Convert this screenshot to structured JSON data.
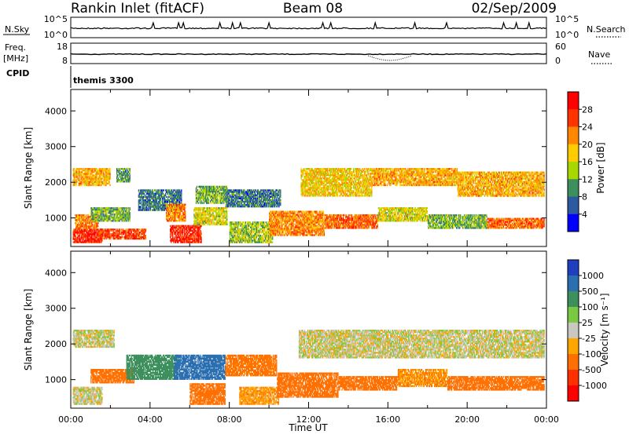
{
  "header": {
    "title": "Rankin Inlet (fitACF)",
    "beam": "Beam 08",
    "date": "02/Sep/2009"
  },
  "panels": {
    "nsky": {
      "label": "N.Sky",
      "ticks_left": [
        "10^5",
        "10^0"
      ],
      "ticks_right": [
        "10^5",
        "10^0"
      ],
      "right_label": "N.Search",
      "right_legend_line": "dotted"
    },
    "freq": {
      "label_top": "Freq.",
      "label_units": "[MHz]",
      "ticks_left": [
        "18",
        "8"
      ],
      "ticks_right": [
        "60",
        "0"
      ],
      "right_label": "Nave",
      "right_legend_line": "dotted"
    },
    "cpid": {
      "label": "CPID",
      "value": "themis 3300"
    }
  },
  "chart_data": [
    {
      "type": "heatmap",
      "name": "power",
      "ylabel": "Slant Range [km]",
      "ylim": [
        200,
        4600
      ],
      "yticks": [
        "1000",
        "2000",
        "3000",
        "4000"
      ],
      "colorbar_label": "Power [dB]",
      "colorbar_ticks": [
        "28",
        "24",
        "20",
        "16",
        "12",
        "8",
        "4"
      ],
      "colorbar_colors": [
        "#ff0000",
        "#ff3300",
        "#ff8800",
        "#ffcc00",
        "#a8d800",
        "#3e8f5e",
        "#2c5aa0",
        "#0000ff"
      ],
      "regions": [
        {
          "t0": 0.1,
          "t1": 1.6,
          "r0": 300,
          "r1": 700,
          "level": 28
        },
        {
          "t0": 0.2,
          "t1": 1.4,
          "r0": 700,
          "r1": 1100,
          "level": 22
        },
        {
          "t0": 0.1,
          "t1": 2.0,
          "r0": 1900,
          "r1": 2400,
          "level": 20
        },
        {
          "t0": 1.4,
          "t1": 3.8,
          "r0": 400,
          "r1": 700,
          "level": 26
        },
        {
          "t0": 1.0,
          "t1": 3.0,
          "r0": 900,
          "r1": 1300,
          "level": 12
        },
        {
          "t0": 2.3,
          "t1": 3.0,
          "r0": 2000,
          "r1": 2400,
          "level": 10
        },
        {
          "t0": 3.4,
          "t1": 5.6,
          "r0": 1200,
          "r1": 1800,
          "level": 8
        },
        {
          "t0": 4.8,
          "t1": 5.8,
          "r0": 900,
          "r1": 1400,
          "level": 22
        },
        {
          "t0": 5.0,
          "t1": 6.6,
          "r0": 300,
          "r1": 800,
          "level": 28
        },
        {
          "t0": 6.2,
          "t1": 7.9,
          "r0": 800,
          "r1": 1300,
          "level": 16
        },
        {
          "t0": 6.3,
          "t1": 7.9,
          "r0": 1400,
          "r1": 1900,
          "level": 12
        },
        {
          "t0": 7.8,
          "t1": 10.6,
          "r0": 1300,
          "r1": 1800,
          "level": 8
        },
        {
          "t0": 8.0,
          "t1": 10.2,
          "r0": 300,
          "r1": 900,
          "level": 14
        },
        {
          "t0": 10.0,
          "t1": 12.8,
          "r0": 500,
          "r1": 1200,
          "level": 22
        },
        {
          "t0": 12.8,
          "t1": 15.5,
          "r0": 700,
          "r1": 1100,
          "level": 24
        },
        {
          "t0": 15.5,
          "t1": 18.0,
          "r0": 900,
          "r1": 1300,
          "level": 16
        },
        {
          "t0": 18.0,
          "t1": 21.0,
          "r0": 700,
          "r1": 1100,
          "level": 12
        },
        {
          "t0": 21.0,
          "t1": 23.9,
          "r0": 700,
          "r1": 1000,
          "level": 24
        },
        {
          "t0": 11.6,
          "t1": 15.2,
          "r0": 1600,
          "r1": 2400,
          "level": 18
        },
        {
          "t0": 15.2,
          "t1": 19.5,
          "r0": 1900,
          "r1": 2400,
          "level": 20
        },
        {
          "t0": 19.5,
          "t1": 23.9,
          "r0": 1600,
          "r1": 2300,
          "level": 20
        }
      ]
    },
    {
      "type": "heatmap",
      "name": "velocity",
      "ylabel": "Slant Range [km]",
      "ylim": [
        200,
        4600
      ],
      "yticks": [
        "1000",
        "2000",
        "3000",
        "4000"
      ],
      "xlabel": "Time UT",
      "xticks": [
        "00:00",
        "04:00",
        "08:00",
        "12:00",
        "16:00",
        "20:00",
        "00:00"
      ],
      "xlim_hours": [
        0,
        24
      ],
      "colorbar_label": "Velocity [m s⁻¹]",
      "colorbar_ticks": [
        "1000",
        "500",
        "100",
        "25",
        "-25",
        "-100",
        "-500",
        "-1000"
      ],
      "colorbar_colors": [
        "#1f3fbf",
        "#2b6fb0",
        "#3e8f5e",
        "#7ac943",
        "#c8c8c0",
        "#ffa500",
        "#ff7000",
        "#ff3000",
        "#ff0000"
      ],
      "regions": [
        {
          "t0": 0.1,
          "t1": 2.2,
          "r0": 1900,
          "r1": 2400,
          "level": 0
        },
        {
          "t0": 0.1,
          "t1": 1.6,
          "r0": 300,
          "r1": 800,
          "level": 0
        },
        {
          "t0": 1.0,
          "t1": 3.2,
          "r0": 900,
          "r1": 1300,
          "level": -300
        },
        {
          "t0": 2.8,
          "t1": 5.4,
          "r0": 1000,
          "r1": 1700,
          "level": 200
        },
        {
          "t0": 5.2,
          "t1": 7.8,
          "r0": 1000,
          "r1": 1700,
          "level": 800
        },
        {
          "t0": 6.0,
          "t1": 7.8,
          "r0": 300,
          "r1": 900,
          "level": -200
        },
        {
          "t0": 7.8,
          "t1": 10.4,
          "r0": 1100,
          "r1": 1700,
          "level": -150
        },
        {
          "t0": 8.5,
          "t1": 10.5,
          "r0": 300,
          "r1": 800,
          "level": -80
        },
        {
          "t0": 10.4,
          "t1": 13.5,
          "r0": 500,
          "r1": 1200,
          "level": -300
        },
        {
          "t0": 13.5,
          "t1": 16.5,
          "r0": 700,
          "r1": 1100,
          "level": -400
        },
        {
          "t0": 16.5,
          "t1": 19.0,
          "r0": 800,
          "r1": 1300,
          "level": -100
        },
        {
          "t0": 19.0,
          "t1": 23.9,
          "r0": 700,
          "r1": 1100,
          "level": -250
        },
        {
          "t0": 11.5,
          "t1": 23.9,
          "r0": 1600,
          "r1": 2400,
          "level": 0
        }
      ]
    }
  ]
}
